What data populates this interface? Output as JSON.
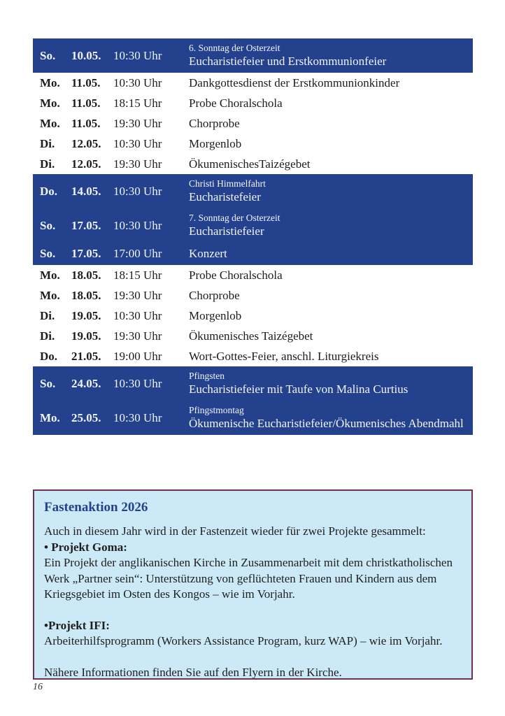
{
  "colors": {
    "highlight_blue": "#24418e",
    "box_background": "#cbe9f6",
    "box_border": "#6e3350",
    "heading_blue": "#24418e"
  },
  "schedule": {
    "rows": [
      {
        "day": "So.",
        "date": "10.05.",
        "time": "10:30 Uhr",
        "title": "6. Sonntag der Osterzeit",
        "event": "Eucharistiefeier und Erstkommunionfeier",
        "highlight": true
      },
      {
        "day": "Mo.",
        "date": "11.05.",
        "time": "10:30 Uhr",
        "title": "",
        "event": "Dankgottesdienst der Erstkommunionkinder",
        "highlight": false
      },
      {
        "day": "Mo.",
        "date": "11.05.",
        "time": "18:15 Uhr",
        "title": "",
        "event": "Probe Choralschola",
        "highlight": false
      },
      {
        "day": "Mo.",
        "date": "11.05.",
        "time": "19:30 Uhr",
        "title": "",
        "event": "Chorprobe",
        "highlight": false
      },
      {
        "day": "Di.",
        "date": "12.05.",
        "time": "10:30 Uhr",
        "title": "",
        "event": "Morgenlob",
        "highlight": false
      },
      {
        "day": "Di.",
        "date": "12.05.",
        "time": "19:30 Uhr",
        "title": "",
        "event": "ÖkumenischesTaizégebet",
        "highlight": false
      },
      {
        "day": "Do.",
        "date": "14.05.",
        "time": "10:30 Uhr",
        "title": "Christi Himmelfahrt",
        "event": "Eucharistefeier",
        "highlight": true
      },
      {
        "day": "So.",
        "date": "17.05.",
        "time": "10:30 Uhr",
        "title": "7. Sonntag der Osterzeit",
        "event": "Eucharistiefeier",
        "highlight": true
      },
      {
        "day": "So.",
        "date": "17.05.",
        "time": "17:00 Uhr",
        "title": "",
        "event": "Konzert",
        "highlight": true
      },
      {
        "day": "Mo.",
        "date": "18.05.",
        "time": "18:15 Uhr",
        "title": "",
        "event": "Probe Choralschola",
        "highlight": false
      },
      {
        "day": "Mo.",
        "date": "18.05.",
        "time": "19:30 Uhr",
        "title": "",
        "event": "Chorprobe",
        "highlight": false
      },
      {
        "day": "Di.",
        "date": "19.05.",
        "time": "10:30 Uhr",
        "title": "",
        "event": "Morgenlob",
        "highlight": false
      },
      {
        "day": "Di.",
        "date": "19.05.",
        "time": "19:30 Uhr",
        "title": "",
        "event": "Ökumenisches Taizégebet",
        "highlight": false
      },
      {
        "day": "Do.",
        "date": "21.05.",
        "time": "19:00 Uhr",
        "title": "",
        "event": "Wort-Gottes-Feier, anschl. Liturgiekreis",
        "highlight": false
      },
      {
        "day": "So.",
        "date": "24.05.",
        "time": "10:30 Uhr",
        "title": "Pfingsten",
        "event": "Eucharistiefeier mit Taufe von Malina Curtius",
        "highlight": true
      },
      {
        "day": "Mo.",
        "date": "25.05.",
        "time": "10:30 Uhr",
        "title": "Pfingstmontag",
        "event": "Ökumenische Eucharistiefeier/Ökumenisches Abendmahl",
        "highlight": true
      }
    ]
  },
  "fastenaktion": {
    "heading": "Fastenaktion 2026",
    "intro": "Auch in diesem Jahr wird in der Fastenzeit wieder für zwei Projekte gesammelt:",
    "project_goma_label": "• Projekt Goma:",
    "project_goma_text": "Ein Projekt der anglikanischen Kirche in Zusammenarbeit mit dem christkatholischen Werk „Partner sein“: Unterstützung von geflüchteten Frauen und Kindern aus dem Kriegsgebiet im Osten des Kongos – wie im Vorjahr.",
    "project_ifi_label": "•Projekt IFI:",
    "project_ifi_text": "Arbeiterhilfsprogramm (Workers Assistance Program, kurz WAP) – wie im Vorjahr.",
    "footer": "Nähere Informationen finden Sie auf den Flyern in der Kirche."
  },
  "page": {
    "number": "16"
  }
}
